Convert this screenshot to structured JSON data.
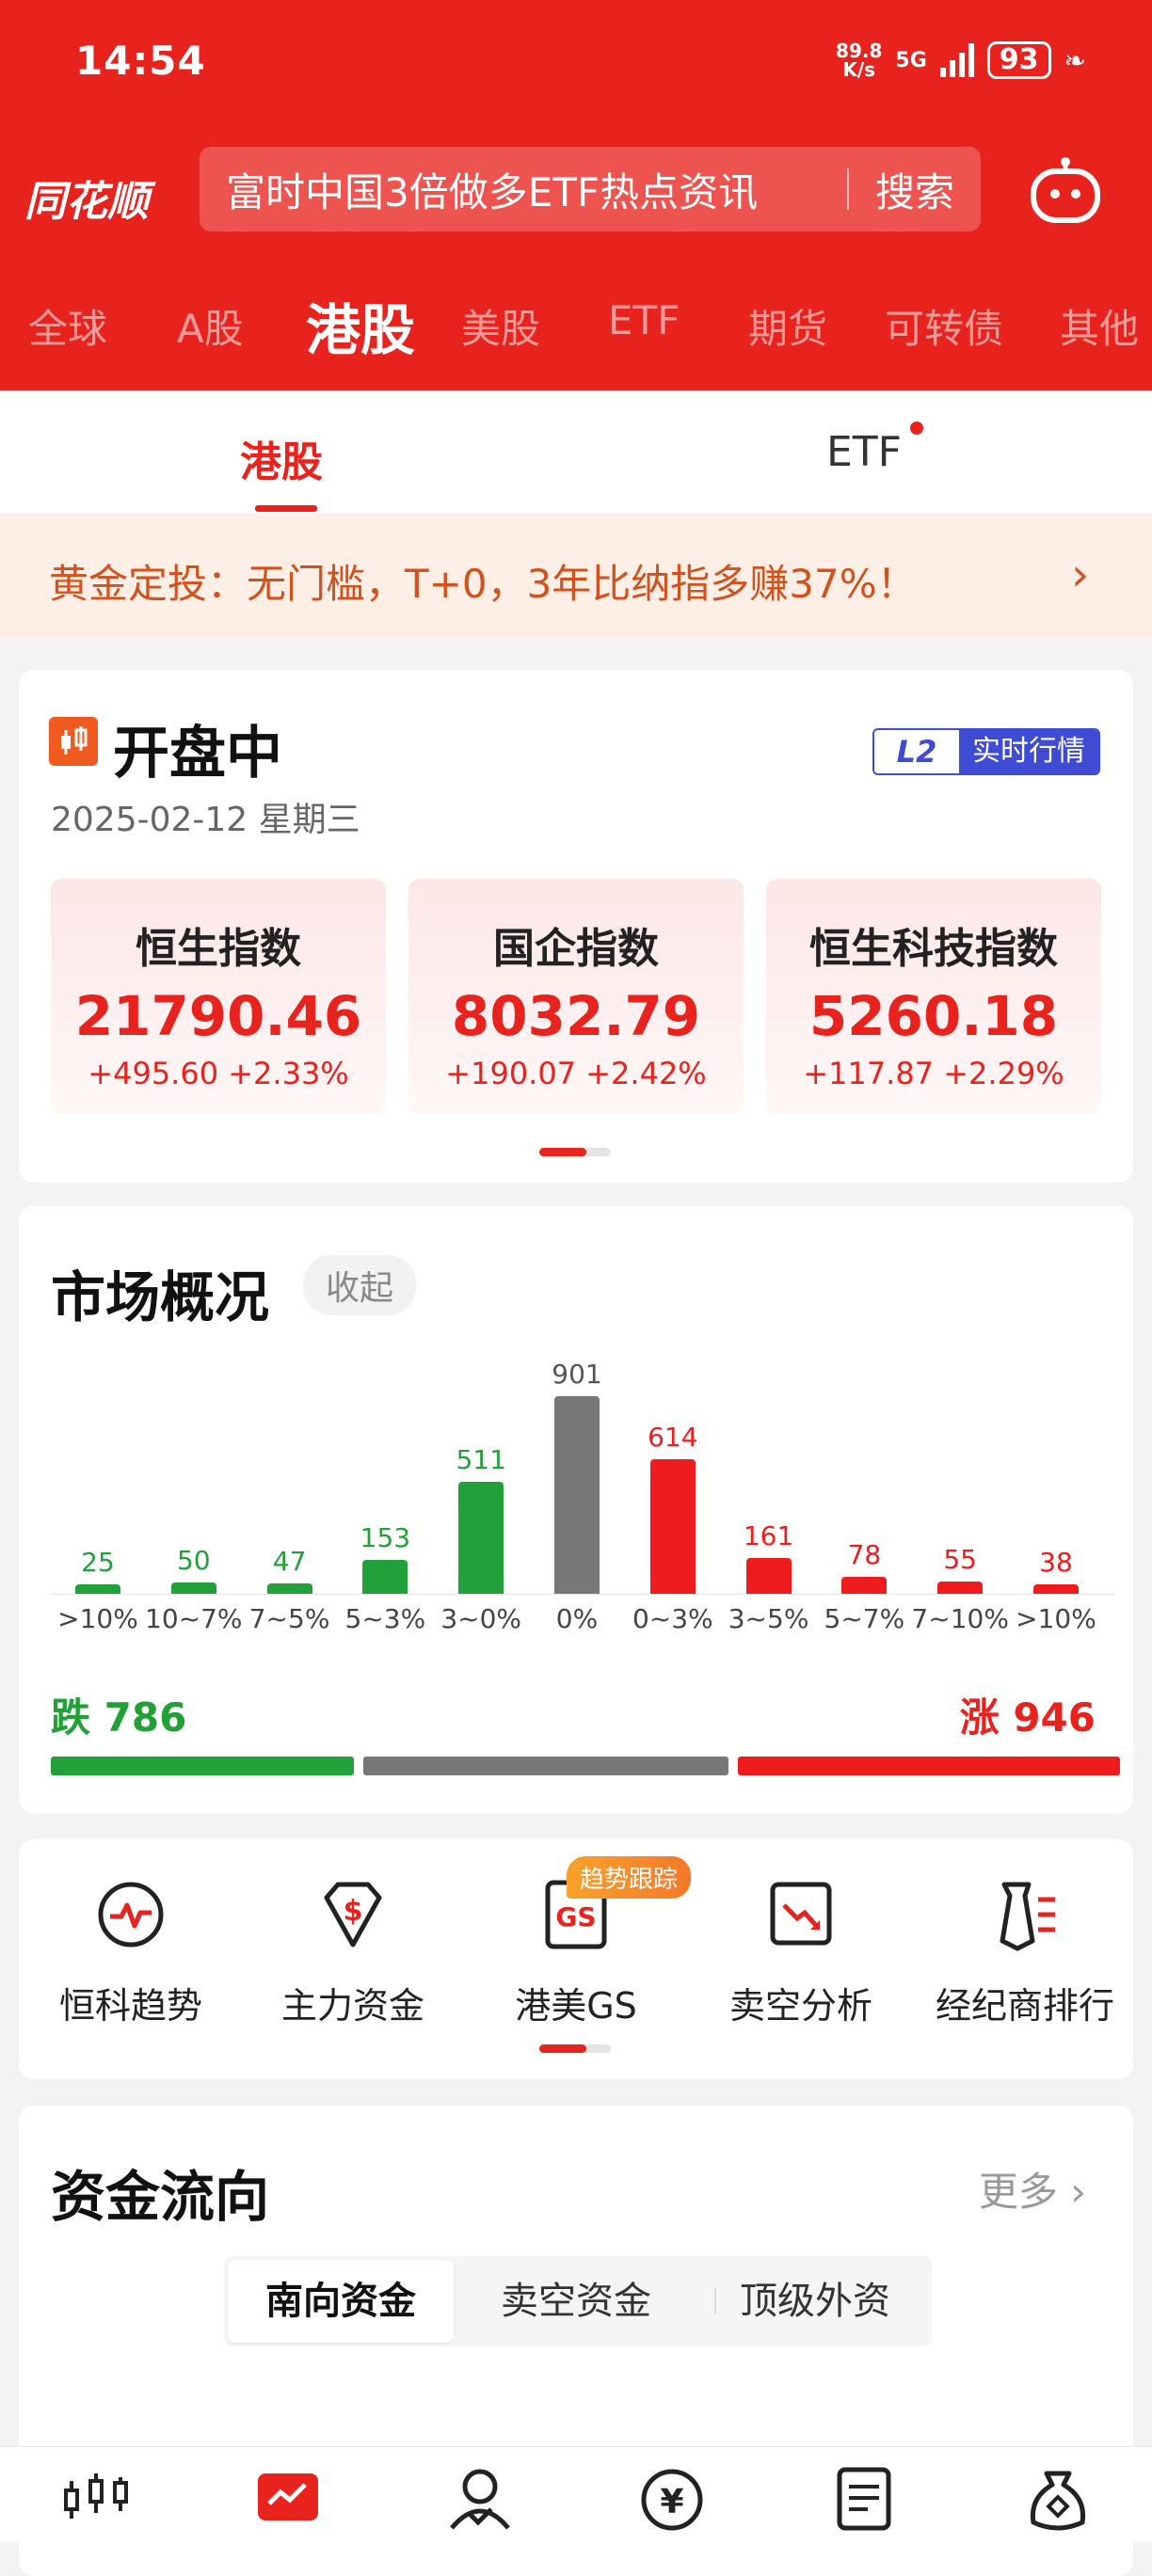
{
  "status": {
    "time": "14:54",
    "net_speed_top": "89.8",
    "net_speed_unit": "K/s",
    "signal": "5G",
    "battery": "93"
  },
  "header": {
    "logo": "同花顺",
    "search_text": "富时中国3倍做多ETF热点资讯",
    "search_button": "搜索"
  },
  "market_tabs": [
    "全球",
    "A股",
    "港股",
    "美股",
    "ETF",
    "期货",
    "可转债",
    "其他"
  ],
  "active_market_tab": "港股",
  "sub_tabs": [
    "港股",
    "ETF"
  ],
  "banner": {
    "text": "黄金定投：无门槛，T+0，3年比纳指多赚37%！"
  },
  "session": {
    "status": "开盘中",
    "date": "2025-02-12 星期三",
    "l2_badge": "L2",
    "l2_label": "实时行情"
  },
  "indices": [
    {
      "name": "恒生指数",
      "value": "21790.46",
      "change": "+495.60",
      "pct": "+2.33%"
    },
    {
      "name": "国企指数",
      "value": "8032.79",
      "change": "+190.07",
      "pct": "+2.42%"
    },
    {
      "name": "恒生科技指数",
      "value": "5260.18",
      "change": "+117.87",
      "pct": "+2.29%"
    }
  ],
  "overview": {
    "title": "市场概况",
    "collapse_label": "收起",
    "fall_label": "跌",
    "fall_count": "786",
    "rise_label": "涨",
    "rise_count": "946"
  },
  "chart_data": {
    "type": "bar",
    "categories": [
      ">10%",
      "10~7%",
      "7~5%",
      "5~3%",
      "3~0%",
      "0%",
      "0~3%",
      "3~5%",
      "5~7%",
      "7~10%",
      ">10%"
    ],
    "values": [
      25,
      50,
      47,
      153,
      511,
      901,
      614,
      161,
      78,
      55,
      38
    ],
    "colors": [
      "#22a03a",
      "#22a03a",
      "#22a03a",
      "#22a03a",
      "#22a03a",
      "#777777",
      "#ee1c1c",
      "#ee1c1c",
      "#ee1c1c",
      "#ee1c1c",
      "#ee1c1c"
    ],
    "ylim": [
      0,
      901
    ]
  },
  "tools": [
    {
      "label": "恒科趋势",
      "icon": "trend-pulse-icon"
    },
    {
      "label": "主力资金",
      "icon": "dollar-diamond-icon"
    },
    {
      "label": "港美GS",
      "icon": "gs-doc-icon",
      "badge": "趋势跟踪"
    },
    {
      "label": "卖空分析",
      "icon": "short-chart-icon"
    },
    {
      "label": "经纪商排行",
      "icon": "broker-rank-icon"
    }
  ],
  "fund_flow": {
    "title": "资金流向",
    "more": "更多",
    "segments": [
      "南向资金",
      "卖空资金",
      "顶级外资"
    ]
  },
  "bottom_nav": [
    "home-chart-icon",
    "market-icon",
    "user-icon",
    "yuan-icon",
    "news-icon",
    "wealth-bag-icon"
  ]
}
